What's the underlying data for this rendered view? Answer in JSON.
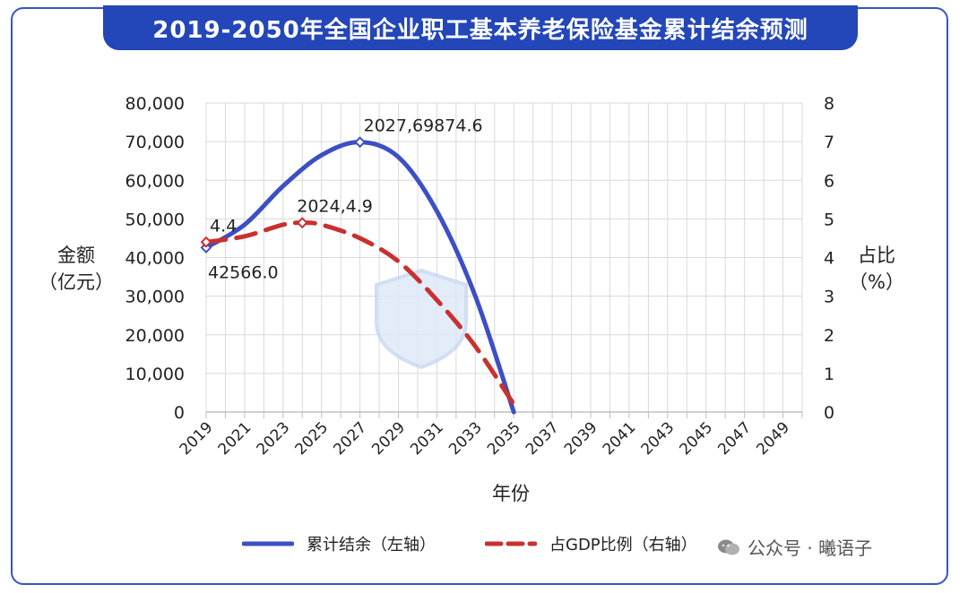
{
  "title": "2019-2050年全国企业职工基本养老保险基金累计结余预测",
  "watermark": "公众号 · 曦语子",
  "colors": {
    "frame": "#3554c9",
    "title_bg": "#2346b8",
    "series1": "#3c4fc4",
    "series2": "#c8312f"
  },
  "chart_data": {
    "type": "line",
    "xlabel": "年份",
    "ylabel_line1": "金额",
    "ylabel_line2": "（亿元）",
    "y2label_line1": "占比",
    "y2label_line2": "（%）",
    "x_ticks": [
      "2019",
      "2021",
      "2023",
      "2025",
      "2027",
      "2029",
      "2031",
      "2033",
      "2035",
      "2037",
      "2039",
      "2041",
      "2043",
      "2045",
      "2047",
      "2049"
    ],
    "xlim": [
      2019,
      2050
    ],
    "ylim": [
      0,
      80000
    ],
    "y_ticks": [
      "0",
      "10,000",
      "20,000",
      "30,000",
      "40,000",
      "50,000",
      "60,000",
      "70,000",
      "80,000"
    ],
    "y2lim": [
      0,
      8
    ],
    "y2_ticks": [
      "0",
      "1",
      "2",
      "3",
      "4",
      "5",
      "6",
      "7",
      "8"
    ],
    "grid": true,
    "legend_position": "bottom",
    "series": [
      {
        "name": "累计结余（左轴）",
        "axis": "left",
        "style": "solid",
        "x": [
          2019,
          2021,
          2023,
          2025,
          2027,
          2029,
          2031,
          2033,
          2035
        ],
        "y": [
          42566.0,
          48500,
          58500,
          66500,
          69874.6,
          66000,
          52000,
          30000,
          0
        ]
      },
      {
        "name": "占GDP比例（右轴）",
        "axis": "right",
        "style": "dashed",
        "x": [
          2019,
          2021,
          2023,
          2024,
          2025,
          2027,
          2029,
          2031,
          2033,
          2035
        ],
        "y": [
          4.4,
          4.55,
          4.85,
          4.9,
          4.85,
          4.5,
          3.9,
          2.9,
          1.7,
          0.2
        ]
      }
    ],
    "annotations": [
      {
        "text": "2027,69874.6",
        "x": 2027,
        "y": 69874.6,
        "axis": "left",
        "place": "above-right"
      },
      {
        "text": "42566.0",
        "x": 2019,
        "y": 42566.0,
        "axis": "left",
        "place": "below"
      },
      {
        "text": "2024,4.9",
        "x": 2024,
        "y": 4.9,
        "axis": "right",
        "place": "above"
      },
      {
        "text": "4.4",
        "x": 2019,
        "y": 4.4,
        "axis": "right",
        "place": "above-right"
      }
    ]
  }
}
